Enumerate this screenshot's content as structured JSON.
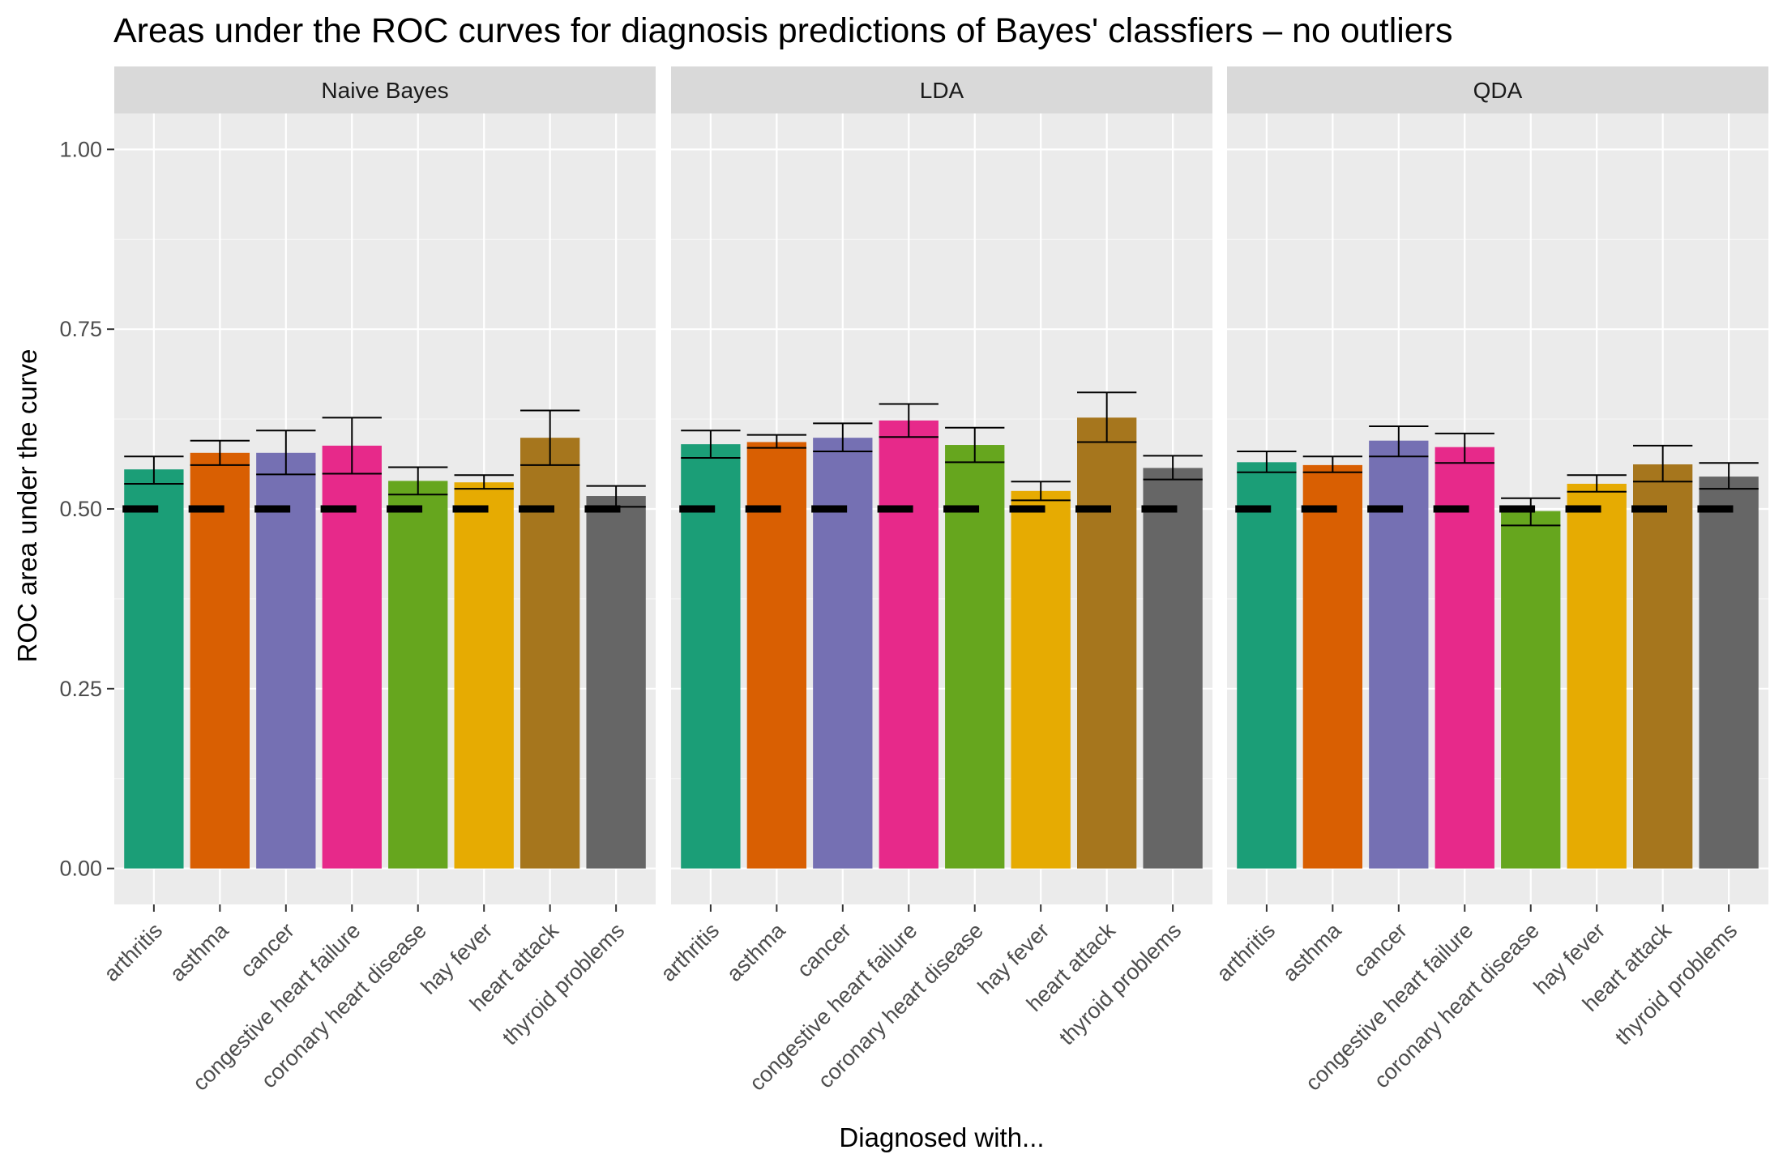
{
  "chart_data": {
    "type": "bar",
    "title": "Areas under the ROC curves for diagnosis predictions of Bayes' classfiers – no outliers",
    "xlabel": "Diagnosed with...",
    "ylabel": "ROC area under the curve",
    "ylim": [
      -0.05,
      1.05
    ],
    "yticks": [
      "0.00",
      "0.25",
      "0.50",
      "0.75",
      "1.00"
    ],
    "ytick_values": [
      0,
      0.25,
      0.5,
      0.75,
      1.0
    ],
    "reference_value": 0.5,
    "grid": true,
    "legend": "none",
    "categories": [
      "arthritis",
      "asthma",
      "cancer",
      "congestive heart failure",
      "coronary heart disease",
      "hay fever",
      "heart attack",
      "thyroid problems"
    ],
    "colors": [
      "#1b9e77",
      "#d95f02",
      "#7570b3",
      "#e7298a",
      "#66a61e",
      "#e6ab02",
      "#a6761d",
      "#666666"
    ],
    "panels": [
      {
        "name": "Naive Bayes",
        "values": [
          0.555,
          0.578,
          0.578,
          0.588,
          0.539,
          0.537,
          0.599,
          0.518
        ],
        "lower": [
          0.535,
          0.561,
          0.548,
          0.549,
          0.52,
          0.528,
          0.561,
          0.503
        ],
        "upper": [
          0.573,
          0.595,
          0.609,
          0.627,
          0.558,
          0.547,
          0.637,
          0.532
        ]
      },
      {
        "name": "LDA",
        "values": [
          0.59,
          0.593,
          0.599,
          0.623,
          0.589,
          0.525,
          0.627,
          0.557
        ],
        "lower": [
          0.571,
          0.585,
          0.58,
          0.6,
          0.565,
          0.512,
          0.593,
          0.541
        ],
        "upper": [
          0.609,
          0.603,
          0.619,
          0.646,
          0.613,
          0.538,
          0.662,
          0.574
        ]
      },
      {
        "name": "QDA",
        "values": [
          0.565,
          0.561,
          0.595,
          0.586,
          0.497,
          0.535,
          0.562,
          0.545
        ],
        "lower": [
          0.551,
          0.551,
          0.573,
          0.564,
          0.477,
          0.524,
          0.538,
          0.528
        ],
        "upper": [
          0.58,
          0.573,
          0.615,
          0.605,
          0.515,
          0.547,
          0.588,
          0.564
        ]
      }
    ]
  }
}
